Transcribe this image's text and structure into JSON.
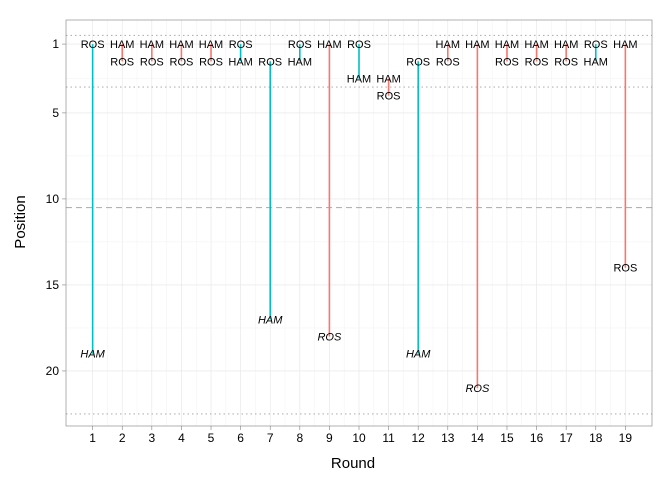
{
  "chart_data": {
    "type": "linerange",
    "xlabel": "Round",
    "ylabel": "Position",
    "x_ticks": [
      1,
      2,
      3,
      4,
      5,
      6,
      7,
      8,
      9,
      10,
      11,
      12,
      13,
      14,
      15,
      16,
      17,
      18,
      19
    ],
    "y_ticks": [
      1,
      5,
      10,
      15,
      20
    ],
    "xlim": [
      0.1,
      19.9
    ],
    "ylim": [
      23.2,
      -0.4
    ],
    "y_reversed": true,
    "grid": true,
    "colors": {
      "ham_higher": "#00BFC4",
      "ros_higher": "#F8766D"
    },
    "reference_lines": [
      {
        "y": 10.5,
        "style": "dashed"
      },
      {
        "y": 0.5,
        "style": "dotted"
      },
      {
        "y": 3.5,
        "style": "dotted"
      },
      {
        "y": 22.5,
        "style": "dotted"
      }
    ],
    "rounds": [
      {
        "round": 1,
        "top": "ROS",
        "bottom": "HAM",
        "top_pos": 1,
        "bottom_pos": 19,
        "color": "#00BFC4",
        "bottom_italic": true
      },
      {
        "round": 2,
        "top": "HAM",
        "bottom": "ROS",
        "top_pos": 1,
        "bottom_pos": 2,
        "color": "#F8766D",
        "bottom_italic": false
      },
      {
        "round": 3,
        "top": "HAM",
        "bottom": "ROS",
        "top_pos": 1,
        "bottom_pos": 2,
        "color": "#F8766D",
        "bottom_italic": false
      },
      {
        "round": 4,
        "top": "HAM",
        "bottom": "ROS",
        "top_pos": 1,
        "bottom_pos": 2,
        "color": "#F8766D",
        "bottom_italic": false
      },
      {
        "round": 5,
        "top": "HAM",
        "bottom": "ROS",
        "top_pos": 1,
        "bottom_pos": 2,
        "color": "#F8766D",
        "bottom_italic": false
      },
      {
        "round": 6,
        "top": "ROS",
        "bottom": "HAM",
        "top_pos": 1,
        "bottom_pos": 2,
        "color": "#00BFC4",
        "bottom_italic": false
      },
      {
        "round": 7,
        "top": "ROS",
        "bottom": "HAM",
        "top_pos": 2,
        "bottom_pos": 17,
        "color": "#00BFC4",
        "bottom_italic": true
      },
      {
        "round": 8,
        "top": "ROS",
        "bottom": "HAM",
        "top_pos": 1,
        "bottom_pos": 2,
        "color": "#00BFC4",
        "bottom_italic": false
      },
      {
        "round": 9,
        "top": "HAM",
        "bottom": "ROS",
        "top_pos": 1,
        "bottom_pos": 18,
        "color": "#F8766D",
        "bottom_italic": true
      },
      {
        "round": 10,
        "top": "ROS",
        "bottom": "HAM",
        "top_pos": 1,
        "bottom_pos": 3,
        "color": "#00BFC4",
        "bottom_italic": false
      },
      {
        "round": 11,
        "top": "HAM",
        "bottom": "ROS",
        "top_pos": 3,
        "bottom_pos": 4,
        "color": "#F8766D",
        "bottom_italic": false
      },
      {
        "round": 12,
        "top": "ROS",
        "bottom": "HAM",
        "top_pos": 2,
        "bottom_pos": 19,
        "color": "#00BFC4",
        "bottom_italic": true
      },
      {
        "round": 13,
        "top": "HAM",
        "bottom": "ROS",
        "top_pos": 1,
        "bottom_pos": 2,
        "color": "#F8766D",
        "bottom_italic": false
      },
      {
        "round": 14,
        "top": "HAM",
        "bottom": "ROS",
        "top_pos": 1,
        "bottom_pos": 21,
        "color": "#F8766D",
        "bottom_italic": true
      },
      {
        "round": 15,
        "top": "HAM",
        "bottom": "ROS",
        "top_pos": 1,
        "bottom_pos": 2,
        "color": "#F8766D",
        "bottom_italic": false
      },
      {
        "round": 16,
        "top": "HAM",
        "bottom": "ROS",
        "top_pos": 1,
        "bottom_pos": 2,
        "color": "#F8766D",
        "bottom_italic": false
      },
      {
        "round": 17,
        "top": "HAM",
        "bottom": "ROS",
        "top_pos": 1,
        "bottom_pos": 2,
        "color": "#F8766D",
        "bottom_italic": false
      },
      {
        "round": 18,
        "top": "ROS",
        "bottom": "HAM",
        "top_pos": 1,
        "bottom_pos": 2,
        "color": "#00BFC4",
        "bottom_italic": false
      },
      {
        "round": 19,
        "top": "HAM",
        "bottom": "ROS",
        "top_pos": 1,
        "bottom_pos": 14,
        "color": "#F8766D",
        "bottom_italic": false
      }
    ]
  }
}
